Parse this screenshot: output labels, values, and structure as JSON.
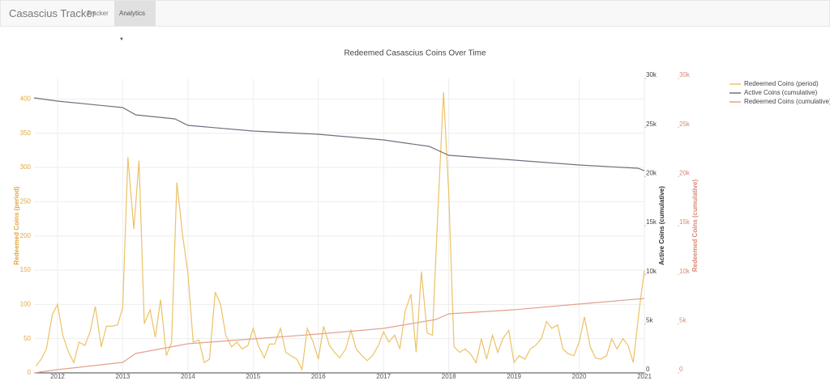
{
  "navbar": {
    "brand": "Casascius Tracker",
    "items": [
      "Tracker",
      "Analytics"
    ]
  },
  "chart_data": {
    "type": "line",
    "title": "Redeemed Casascius Coins Over Time",
    "y_label": "Redeemed Coins (period)",
    "y2_label": "Active Coins (cumulative)",
    "y3_label": "Redeemed Coins (cumulative)",
    "xlim": [
      2011.64,
      2021.0
    ],
    "xticks": [
      2012,
      2013,
      2014,
      2015,
      2016,
      2017,
      2018,
      2019,
      2020,
      2021
    ],
    "ylim": [
      0,
      430
    ],
    "yticks": [
      0,
      50,
      100,
      150,
      200,
      250,
      300,
      350,
      400
    ],
    "y2lim": [
      0,
      30000
    ],
    "y2ticks": [
      0,
      {
        "value": 5000,
        "label": "5k"
      },
      {
        "value": 10000,
        "label": "10k"
      },
      {
        "value": 15000,
        "label": "15k"
      },
      {
        "value": 20000,
        "label": "20k"
      },
      {
        "value": 25000,
        "label": "25k"
      },
      {
        "value": 30000,
        "label": "30k"
      }
    ],
    "y3lim": [
      0,
      30000
    ],
    "y3ticks": [
      0,
      {
        "value": 5000,
        "label": "5k"
      },
      {
        "value": 10000,
        "label": "10k"
      },
      {
        "value": 15000,
        "label": "15k"
      },
      {
        "value": 20000,
        "label": "20k"
      },
      {
        "value": 25000,
        "label": "25k"
      },
      {
        "value": 30000,
        "label": "30k"
      }
    ],
    "grid": true,
    "legend": "right",
    "series": [
      {
        "name": "Redeemed Coins (period)",
        "color": "#ecc266",
        "axis": "y",
        "x": [
          2011.67,
          2011.75,
          2011.83,
          2011.92,
          2012.0,
          2012.08,
          2012.17,
          2012.25,
          2012.33,
          2012.42,
          2012.5,
          2012.58,
          2012.67,
          2012.75,
          2012.83,
          2012.92,
          2013.0,
          2013.08,
          2013.17,
          2013.25,
          2013.33,
          2013.42,
          2013.5,
          2013.58,
          2013.67,
          2013.75,
          2013.83,
          2013.92,
          2014.0,
          2014.08,
          2014.17,
          2014.25,
          2014.33,
          2014.42,
          2014.5,
          2014.58,
          2014.67,
          2014.75,
          2014.83,
          2014.92,
          2015.0,
          2015.08,
          2015.17,
          2015.25,
          2015.33,
          2015.42,
          2015.5,
          2015.58,
          2015.67,
          2015.75,
          2015.83,
          2015.92,
          2016.0,
          2016.08,
          2016.17,
          2016.25,
          2016.33,
          2016.42,
          2016.5,
          2016.58,
          2016.67,
          2016.75,
          2016.83,
          2016.92,
          2017.0,
          2017.08,
          2017.17,
          2017.25,
          2017.33,
          2017.42,
          2017.5,
          2017.58,
          2017.67,
          2017.75,
          2017.83,
          2017.92,
          2018.0,
          2018.08,
          2018.17,
          2018.25,
          2018.33,
          2018.42,
          2018.5,
          2018.58,
          2018.67,
          2018.75,
          2018.83,
          2018.92,
          2019.0,
          2019.08,
          2019.17,
          2019.25,
          2019.33,
          2019.42,
          2019.5,
          2019.58,
          2019.67,
          2019.75,
          2019.83,
          2019.92,
          2020.0,
          2020.08,
          2020.17,
          2020.25,
          2020.33,
          2020.42,
          2020.5,
          2020.58,
          2020.67,
          2020.75,
          2020.83,
          2020.92,
          2021.0
        ],
        "values": [
          10,
          20,
          35,
          85,
          100,
          55,
          30,
          15,
          45,
          40,
          60,
          97,
          38,
          68,
          68,
          70,
          95,
          315,
          210,
          310,
          72,
          92,
          52,
          107,
          25,
          45,
          278,
          200,
          145,
          45,
          48,
          15,
          20,
          118,
          100,
          55,
          38,
          45,
          35,
          40,
          65,
          40,
          22,
          42,
          42,
          65,
          30,
          25,
          20,
          5,
          65,
          45,
          20,
          68,
          40,
          30,
          22,
          35,
          62,
          35,
          25,
          18,
          25,
          40,
          60,
          45,
          55,
          35,
          90,
          115,
          30,
          148,
          58,
          55,
          230,
          410,
          260,
          38,
          30,
          35,
          28,
          15,
          50,
          20,
          55,
          30,
          50,
          62,
          15,
          25,
          20,
          35,
          40,
          50,
          75,
          65,
          70,
          35,
          28,
          25,
          45,
          82,
          38,
          22,
          20,
          25,
          50,
          35,
          50,
          40,
          15,
          92,
          150
        ]
      },
      {
        "name": "Active Coins (cumulative)",
        "color": "#707080",
        "axis": "y2",
        "x": [
          2011.64,
          2012,
          2013,
          2013.2,
          2013.8,
          2014,
          2015,
          2016,
          2017,
          2017.7,
          2018,
          2019,
          2020,
          2020.9,
          2021
        ],
        "values": [
          28020,
          27690,
          27030,
          26290,
          25880,
          25220,
          24640,
          24310,
          23740,
          23080,
          22170,
          21680,
          21180,
          20850,
          20600
        ]
      },
      {
        "name": "Redeemed Coins (cumulative)",
        "color": "#e2a28e",
        "axis": "y3",
        "x": [
          2011.64,
          2012,
          2013,
          2013.2,
          2014,
          2015,
          2016,
          2017,
          2017.8,
          2018,
          2019,
          2020,
          2021
        ],
        "values": [
          0,
          330,
          1070,
          1980,
          2970,
          3460,
          3960,
          4530,
          5440,
          6020,
          6430,
          7010,
          7580
        ]
      }
    ]
  }
}
